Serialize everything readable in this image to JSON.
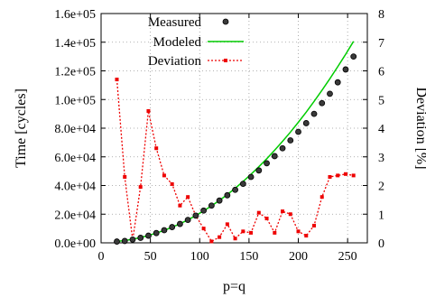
{
  "chart_data": {
    "type": "line",
    "title": "",
    "xlabel": "p=q",
    "ylabel": "Time [cycles]",
    "y2label": "Deviation [%]",
    "xlim": [
      0,
      270
    ],
    "ylim": [
      0,
      160000
    ],
    "y2lim": [
      0,
      8
    ],
    "grid": true,
    "legend_position": "top-left",
    "x_ticks": [
      0,
      50,
      100,
      150,
      200,
      250
    ],
    "y_ticks": [
      0,
      20000,
      40000,
      60000,
      80000,
      100000,
      120000,
      140000,
      160000
    ],
    "y_tick_labels": [
      "0.0e+00",
      "2.0e+04",
      "4.0e+04",
      "6.0e+04",
      "8.0e+04",
      "1.0e+05",
      "1.2e+05",
      "1.4e+05",
      "1.6e+05"
    ],
    "y2_ticks": [
      0,
      1,
      2,
      3,
      4,
      5,
      6,
      7,
      8
    ],
    "series": [
      {
        "name": "Measured",
        "axis": "left",
        "style": "points",
        "color": "#000000",
        "x": [
          16,
          24,
          32,
          40,
          48,
          56,
          64,
          72,
          80,
          88,
          96,
          104,
          112,
          120,
          128,
          136,
          144,
          152,
          160,
          168,
          176,
          184,
          192,
          200,
          208,
          216,
          224,
          232,
          240,
          248,
          256
        ],
        "y": [
          900,
          1300,
          2300,
          3500,
          5000,
          6800,
          8800,
          11000,
          13200,
          16000,
          19000,
          22500,
          26000,
          29500,
          33200,
          37000,
          41200,
          46000,
          50500,
          55500,
          60500,
          66000,
          71500,
          77500,
          83500,
          90000,
          97500,
          104000,
          112000,
          121000,
          130000
        ]
      },
      {
        "name": "Modeled",
        "axis": "left",
        "style": "line",
        "color": "#00cc00",
        "x": [
          16,
          24,
          32,
          40,
          48,
          56,
          64,
          72,
          80,
          88,
          96,
          104,
          112,
          120,
          128,
          136,
          144,
          152,
          160,
          168,
          176,
          184,
          192,
          200,
          208,
          216,
          224,
          232,
          240,
          248,
          256
        ],
        "y": [
          1000,
          1600,
          2500,
          3700,
          5100,
          6800,
          8700,
          10900,
          13300,
          16000,
          19000,
          22300,
          25800,
          29600,
          33700,
          38100,
          42800,
          47800,
          53100,
          58700,
          64600,
          70800,
          77300,
          84100,
          91200,
          98700,
          106400,
          114500,
          122900,
          131600,
          140600
        ]
      },
      {
        "name": "Deviation",
        "axis": "right",
        "style": "line-points",
        "color": "#ee0000",
        "x": [
          16,
          24,
          32,
          40,
          48,
          56,
          64,
          72,
          80,
          88,
          96,
          104,
          112,
          120,
          128,
          136,
          144,
          152,
          160,
          168,
          176,
          184,
          192,
          200,
          208,
          216,
          224,
          232,
          240,
          248,
          256
        ],
        "y": [
          5.7,
          2.3,
          0.1,
          1.95,
          4.6,
          3.3,
          2.35,
          2.05,
          1.3,
          1.6,
          0.95,
          0.5,
          0.05,
          0.2,
          0.65,
          0.15,
          0.4,
          0.35,
          1.05,
          0.85,
          0.35,
          1.1,
          1.0,
          0.4,
          0.25,
          0.6,
          1.6,
          2.3,
          2.35,
          2.4,
          2.35
        ]
      }
    ]
  }
}
